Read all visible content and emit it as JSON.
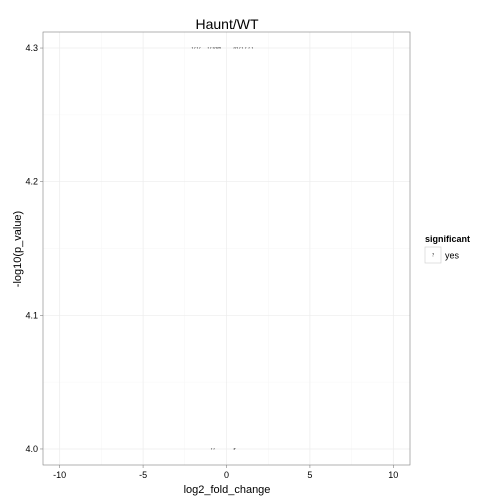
{
  "chart_data": {
    "type": "scatter",
    "title": "Haunt/WT",
    "xlabel": "log2_fold_change",
    "ylabel": "-log10(p_value)",
    "xlim": [
      -11,
      11
    ],
    "ylim": [
      3.988,
      4.312
    ],
    "x_ticks": [
      -10,
      -5,
      0,
      5,
      10
    ],
    "y_ticks": [
      4.0,
      4.1,
      4.2,
      4.3
    ],
    "x_tick_labels": [
      "-10",
      "-5",
      "0",
      "5",
      "10"
    ],
    "y_tick_labels": [
      "4.0",
      "4.1",
      "4.2",
      "4.3"
    ],
    "grid": true,
    "legend": {
      "title": "significant",
      "position": "right",
      "items": [
        {
          "label": "yes",
          "symbol": "?"
        }
      ]
    },
    "points": [
      {
        "x": -2.05,
        "y": 4.3,
        "label": "?"
      },
      {
        "x": -1.9,
        "y": 4.3,
        "label": "?"
      },
      {
        "x": -1.75,
        "y": 4.3,
        "label": "?"
      },
      {
        "x": -1.6,
        "y": 4.3,
        "label": "?"
      },
      {
        "x": -1.1,
        "y": 4.3,
        "label": "?"
      },
      {
        "x": -0.95,
        "y": 4.3,
        "label": "?"
      },
      {
        "x": -0.8,
        "y": 4.3,
        "label": "?"
      },
      {
        "x": -0.7,
        "y": 4.3,
        "label": "?"
      },
      {
        "x": -0.6,
        "y": 4.3,
        "label": "?"
      },
      {
        "x": -0.52,
        "y": 4.3,
        "label": "?"
      },
      {
        "x": -0.45,
        "y": 4.3,
        "label": "?"
      },
      {
        "x": -0.38,
        "y": 4.3,
        "label": "?"
      },
      {
        "x": 0.45,
        "y": 4.3,
        "label": "?"
      },
      {
        "x": 0.55,
        "y": 4.3,
        "label": "?"
      },
      {
        "x": 0.65,
        "y": 4.3,
        "label": "?"
      },
      {
        "x": 0.8,
        "y": 4.3,
        "label": "?"
      },
      {
        "x": 0.95,
        "y": 4.3,
        "label": "?"
      },
      {
        "x": 1.15,
        "y": 4.3,
        "label": "?"
      },
      {
        "x": 1.35,
        "y": 4.3,
        "label": "?"
      },
      {
        "x": 1.55,
        "y": 4.3,
        "label": "?"
      },
      {
        "x": -0.9,
        "y": 4.0,
        "label": "?"
      },
      {
        "x": -0.75,
        "y": 4.0,
        "label": "?"
      },
      {
        "x": 0.45,
        "y": 4.0,
        "label": "?"
      },
      {
        "x": 0.5,
        "y": 4.0,
        "label": "?"
      }
    ]
  }
}
